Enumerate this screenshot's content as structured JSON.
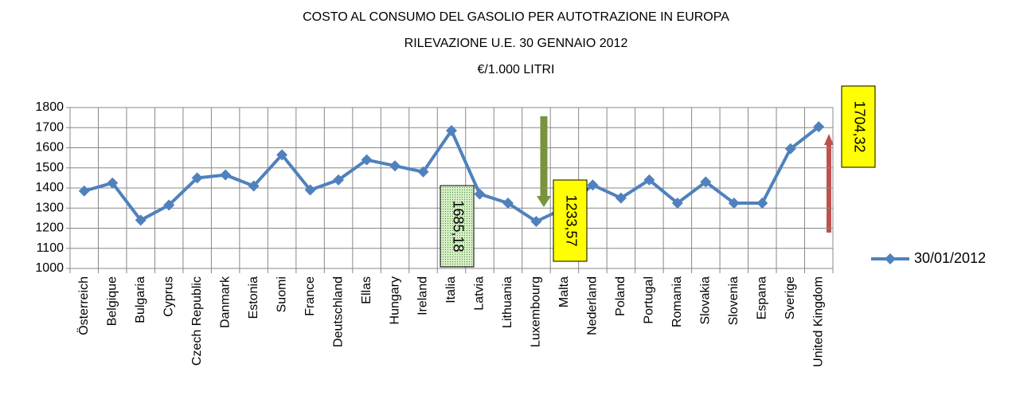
{
  "chart_data": {
    "type": "line",
    "title": [
      "COSTO AL  CONSUMO  DEL  GASOLIO PER AUTOTRAZIONE   IN EUROPA",
      "RILEVAZIONE  U.E. 30 GENNAIO  2012",
      "€/1.000 LITRI"
    ],
    "categories": [
      "Österreich",
      "Belgique",
      "Bulgaria",
      "Cyprus",
      "Czech Republic",
      "Danmark",
      "Estonia",
      "Suomi",
      "France",
      "Deutschland",
      "Ellas",
      "Hungary",
      "Ireland",
      "Italia",
      "Latvia",
      "Lithuania",
      "Luxembourg",
      "Malta",
      "Nederland",
      "Poland",
      "Portugal",
      "Romania",
      "Slovakia",
      "Slovenia",
      "Espana",
      "Sverige",
      "United Kingdom"
    ],
    "series": [
      {
        "name": "30/01/2012",
        "color": "#4f81bd",
        "values": [
          1385,
          1425,
          1240,
          1315,
          1450,
          1465,
          1410,
          1565,
          1390,
          1440,
          1540,
          1510,
          1480,
          1685.18,
          1370,
          1325,
          1233.57,
          1300,
          1415,
          1350,
          1440,
          1325,
          1430,
          1325,
          1325,
          1595,
          1704.32
        ],
        "value_labels": [
          null,
          null,
          null,
          null,
          null,
          null,
          null,
          null,
          null,
          null,
          null,
          null,
          null,
          "1685,18",
          null,
          null,
          "1233,57",
          null,
          null,
          null,
          null,
          null,
          null,
          null,
          null,
          null,
          "1704,32"
        ]
      }
    ],
    "ylim": [
      1000,
      1800
    ],
    "yticks": [
      1000,
      1100,
      1200,
      1300,
      1400,
      1500,
      1600,
      1700,
      1800
    ],
    "grid": true,
    "legend": "right"
  }
}
